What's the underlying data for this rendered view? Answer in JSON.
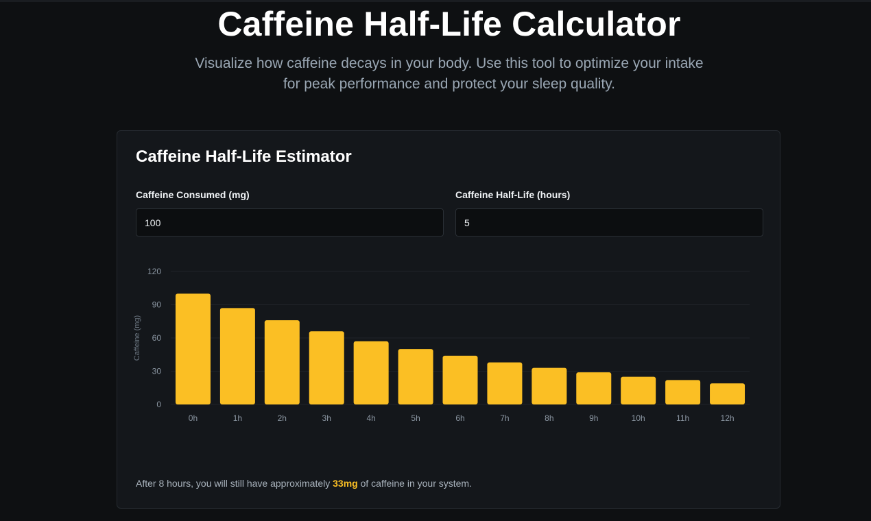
{
  "header": {
    "title": "Caffeine Half-Life Calculator",
    "subtitle_line1": "Visualize how caffeine decays in your body. Use this tool to optimize your intake",
    "subtitle_line2": "for peak performance and protect your sleep quality."
  },
  "card": {
    "title": "Caffeine Half-Life Estimator",
    "fields": [
      {
        "label": "Caffeine Consumed (mg)",
        "value": "100"
      },
      {
        "label": "Caffeine Half-Life (hours)",
        "value": "5"
      }
    ]
  },
  "result": {
    "prefix": "After 8 hours, you will still have approximately",
    "amount": "33mg",
    "suffix": "of caffeine in your system."
  },
  "colors": {
    "bar": "#fbbf24",
    "accent": "#fbbf24",
    "background": "#0e1012",
    "card": "#14171b"
  },
  "chart_data": {
    "type": "bar",
    "ylabel": "Caffeine (mg)",
    "xlabel": "",
    "ylim": [
      0,
      120
    ],
    "yticks": [
      0,
      30,
      60,
      90,
      120
    ],
    "grid": true,
    "categories": [
      "0h",
      "1h",
      "2h",
      "3h",
      "4h",
      "5h",
      "6h",
      "7h",
      "8h",
      "9h",
      "10h",
      "11h",
      "12h"
    ],
    "values": [
      100,
      87,
      76,
      66,
      57,
      50,
      44,
      38,
      33,
      29,
      25,
      22,
      19
    ]
  }
}
